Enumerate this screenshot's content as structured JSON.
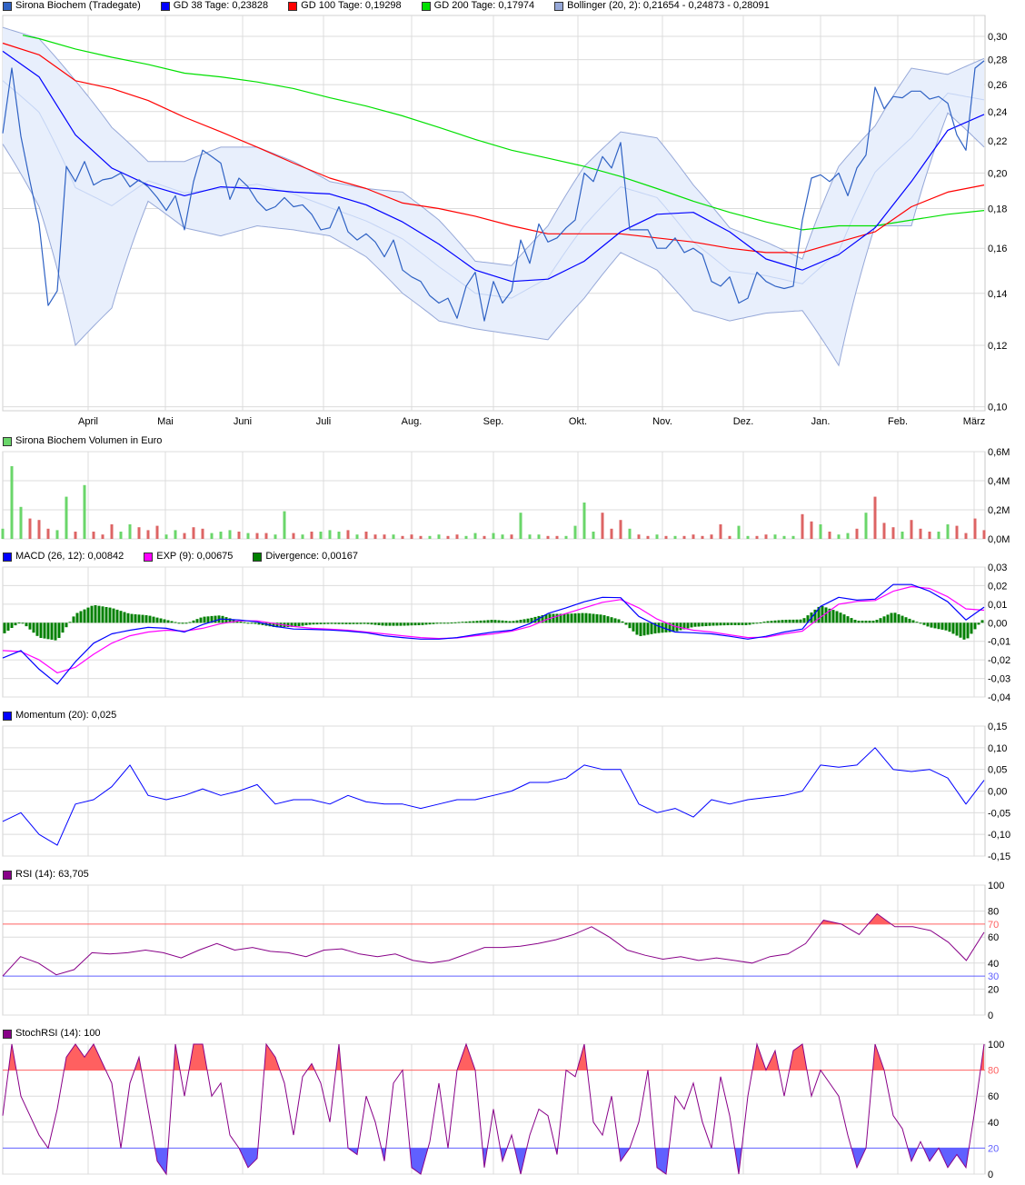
{
  "colors": {
    "price": "#2f62c4",
    "gd38": "#0000ff",
    "gd100": "#ff0000",
    "gd200": "#00e000",
    "boll_line": "#96a8d8",
    "boll_fill": "#e8effc",
    "vol_up": "#6ad66a",
    "vol_down": "#dd6464",
    "macd": "#0000ff",
    "exp": "#ff00ff",
    "divergence": "#008000",
    "momentum": "#0000ff",
    "rsi": "#880088",
    "upper_level": "#ff6060",
    "lower_level": "#6060ff",
    "grid": "#dcdcdc"
  },
  "legends": {
    "main": [
      {
        "label": "Sirona Biochem (Tradegate)",
        "color": "#2f62c4"
      },
      {
        "label": "GD 38 Tage: 0,23828",
        "color": "#0000ff"
      },
      {
        "label": "GD 100 Tage: 0,19298",
        "color": "#ff0000"
      },
      {
        "label": "GD 200 Tage: 0,17974",
        "color": "#00e000"
      },
      {
        "label": "Bollinger (20, 2): 0,21654 - 0,24873 - 0,28091",
        "color": "#96a8d8"
      }
    ],
    "volume": [
      {
        "label": "Sirona Biochem Volumen in Euro",
        "color": "#6ad66a"
      }
    ],
    "macd": [
      {
        "label": "MACD (26, 12): 0,00842",
        "color": "#0000ff"
      },
      {
        "label": "EXP (9): 0,00675",
        "color": "#ff00ff"
      },
      {
        "label": "Divergence: 0,00167",
        "color": "#008000"
      }
    ],
    "momentum": [
      {
        "label": "Momentum (20): 0,025",
        "color": "#0000ff"
      }
    ],
    "rsi": [
      {
        "label": "RSI (14): 63,705",
        "color": "#880088"
      }
    ],
    "stochrsi": [
      {
        "label": "StochRSI (14): 100",
        "color": "#880088"
      }
    ]
  },
  "chart_data": [
    {
      "type": "line",
      "panel": "price",
      "yscale": "log",
      "ylim": [
        0.1,
        0.3
      ],
      "yticks": [
        "0,30",
        "0,28",
        "0,26",
        "0,24",
        "0,22",
        "0,20",
        "0,18",
        "0,16",
        "0,14",
        "0,12",
        "0,10"
      ],
      "ytick_values": [
        0.3,
        0.28,
        0.26,
        0.24,
        0.22,
        0.2,
        0.18,
        0.16,
        0.14,
        0.12,
        0.1
      ],
      "xticks": [
        "April",
        "Mai",
        "Juni",
        "Juli",
        "Aug.",
        "Sep.",
        "Okt.",
        "Nov.",
        "Dez.",
        "Jan.",
        "Feb.",
        "März"
      ],
      "grid": true,
      "legend": "top-left",
      "series": [
        {
          "name": "Sirona Biochem (Tradegate)",
          "values": [
            0.225,
            0.273,
            0.223,
            0.195,
            0.172,
            0.135,
            0.141,
            0.204,
            0.195,
            0.207,
            0.193,
            0.196,
            0.197,
            0.2,
            0.192,
            0.196,
            0.192,
            0.186,
            0.179,
            0.187,
            0.169,
            0.195,
            0.214,
            0.21,
            0.206,
            0.185,
            0.197,
            0.192,
            0.184,
            0.179,
            0.181,
            0.186,
            0.181,
            0.182,
            0.177,
            0.169,
            0.17,
            0.181,
            0.168,
            0.164,
            0.167,
            0.163,
            0.156,
            0.164,
            0.15,
            0.147,
            0.145,
            0.139,
            0.136,
            0.138,
            0.13,
            0.143,
            0.149,
            0.129,
            0.145,
            0.136,
            0.141,
            0.164,
            0.153,
            0.172,
            0.163,
            0.165,
            0.17,
            0.174,
            0.2,
            0.195,
            0.21,
            0.203,
            0.219,
            0.169,
            0.169,
            0.169,
            0.16,
            0.16,
            0.165,
            0.158,
            0.16,
            0.157,
            0.145,
            0.143,
            0.147,
            0.136,
            0.138,
            0.149,
            0.145,
            0.143,
            0.142,
            0.143,
            0.174,
            0.197,
            0.199,
            0.195,
            0.2,
            0.187,
            0.203,
            0.211,
            0.258,
            0.242,
            0.251,
            0.25,
            0.255,
            0.255,
            0.249,
            0.251,
            0.246,
            0.224,
            0.214,
            0.273,
            0.279
          ]
        },
        {
          "name": "GD 38 Tage",
          "values": [
            0.287,
            0.266,
            0.224,
            0.203,
            0.193,
            0.187,
            0.192,
            0.191,
            0.189,
            0.188,
            0.182,
            0.173,
            0.162,
            0.15,
            0.145,
            0.146,
            0.154,
            0.168,
            0.177,
            0.178,
            0.168,
            0.155,
            0.15,
            0.157,
            0.17,
            0.195,
            0.227,
            0.238
          ]
        },
        {
          "name": "GD 100 Tage",
          "values": [
            0.294,
            0.284,
            0.263,
            0.257,
            0.248,
            0.236,
            0.226,
            0.216,
            0.206,
            0.197,
            0.191,
            0.183,
            0.18,
            0.176,
            0.171,
            0.167,
            0.167,
            0.167,
            0.165,
            0.163,
            0.16,
            0.158,
            0.158,
            0.163,
            0.168,
            0.181,
            0.189,
            0.193
          ]
        },
        {
          "name": "GD 200 Tage",
          "values": [
            null,
            0.298,
            0.289,
            0.282,
            0.276,
            0.269,
            0.266,
            0.262,
            0.257,
            0.25,
            0.244,
            0.237,
            0.229,
            0.221,
            0.214,
            0.209,
            0.204,
            0.198,
            0.191,
            0.184,
            0.178,
            0.173,
            0.169,
            0.171,
            0.171,
            0.174,
            0.177,
            0.179
          ]
        },
        {
          "name": "Bollinger upper",
          "values": [
            0.308,
            0.298,
            0.263,
            0.229,
            0.207,
            0.207,
            0.216,
            0.216,
            0.207,
            0.195,
            0.191,
            0.189,
            0.174,
            0.154,
            0.152,
            0.171,
            0.204,
            0.226,
            0.222,
            0.193,
            0.17,
            0.163,
            0.155,
            0.204,
            0.23,
            0.273,
            0.268,
            0.281
          ]
        },
        {
          "name": "Bollinger lower",
          "values": [
            0.218,
            0.181,
            0.12,
            0.134,
            0.184,
            0.17,
            0.166,
            0.171,
            0.169,
            0.166,
            0.156,
            0.14,
            0.129,
            0.126,
            0.124,
            0.122,
            0.138,
            0.158,
            0.15,
            0.133,
            0.129,
            0.132,
            0.133,
            0.113,
            0.171,
            0.171,
            0.239,
            0.216
          ]
        }
      ]
    },
    {
      "type": "bar",
      "panel": "volume",
      "ylim": [
        0,
        0.6
      ],
      "yticks": [
        "0,6M",
        "0,4M",
        "0,2M",
        "0,0M"
      ],
      "ytick_values": [
        0.6,
        0.4,
        0.2,
        0
      ],
      "values": [
        0.07,
        0.5,
        0.22,
        0.14,
        0.13,
        0.07,
        0.06,
        0.29,
        0.05,
        0.37,
        0.05,
        0.03,
        0.1,
        0.05,
        0.1,
        0.08,
        0.06,
        0.09,
        0.03,
        0.06,
        0.04,
        0.08,
        0.07,
        0.04,
        0.05,
        0.06,
        0.05,
        0.04,
        0.04,
        0.04,
        0.03,
        0.19,
        0.04,
        0.03,
        0.05,
        0.05,
        0.06,
        0.05,
        0.06,
        0.03,
        0.05,
        0.03,
        0.03,
        0.03,
        0.02,
        0.03,
        0.02,
        0.02,
        0.03,
        0.02,
        0.03,
        0.02,
        0.04,
        0.02,
        0.04,
        0.03,
        0.03,
        0.18,
        0.03,
        0.03,
        0.02,
        0.02,
        0.02,
        0.09,
        0.25,
        0.05,
        0.18,
        0.07,
        0.13,
        0.07,
        0.03,
        0.02,
        0.03,
        0.02,
        0.02,
        0.02,
        0.03,
        0.02,
        0.03,
        0.1,
        0.02,
        0.09,
        0.02,
        0.02,
        0.03,
        0.03,
        0.02,
        0.02,
        0.17,
        0.12,
        0.1,
        0.05,
        0.03,
        0.04,
        0.07,
        0.18,
        0.29,
        0.11,
        0.08,
        0.05,
        0.13,
        0.07,
        0.05,
        0.05,
        0.1,
        0.09,
        0.04,
        0.14,
        0.06
      ],
      "direction": "gggrrrggrgrrrggrrrggrrrgggrgrrggrgrgggrgrrrgrrrggrrggrggrgggrrggggrrrgrrgrgrrrrrrggrrgggrrgrggrgrrrgrrrgg"
    },
    {
      "type": "line",
      "panel": "macd",
      "ylim": [
        -0.04,
        0.03
      ],
      "yticks": [
        "0,03",
        "0,02",
        "0,01",
        "0,00",
        "-0,01",
        "-0,02",
        "-0,03",
        "-0,04"
      ],
      "ytick_values": [
        0.03,
        0.02,
        0.01,
        0,
        -0.01,
        -0.02,
        -0.03,
        -0.04
      ],
      "series": [
        {
          "name": "MACD (26, 12)",
          "values": [
            -0.019,
            -0.015,
            -0.025,
            -0.033,
            -0.021,
            -0.011,
            -0.006,
            -0.004,
            -0.0025,
            -0.003,
            -0.005,
            -0.001,
            0.002,
            0.0015,
            0.0005,
            -0.002,
            -0.0034,
            -0.0036,
            -0.0039,
            -0.0045,
            -0.0054,
            -0.007,
            -0.008,
            -0.0088,
            -0.0088,
            -0.008,
            -0.0064,
            -0.005,
            -0.004,
            -0.0005,
            0.005,
            0.008,
            0.0113,
            0.0137,
            0.0135,
            0.0034,
            -0.0015,
            -0.005,
            -0.0054,
            -0.006,
            -0.0073,
            -0.0088,
            -0.0073,
            -0.005,
            -0.0034,
            0.0088,
            0.0137,
            0.0122,
            0.0127,
            0.0206,
            0.0206,
            0.017,
            0.0113,
            0.0015,
            0.0084
          ]
        },
        {
          "name": "EXP (9)",
          "values": [
            -0.015,
            -0.0155,
            -0.02,
            -0.027,
            -0.024,
            -0.017,
            -0.011,
            -0.007,
            -0.005,
            -0.004,
            -0.0045,
            -0.003,
            -0.0005,
            0.001,
            0.001,
            -0.0005,
            -0.002,
            -0.003,
            -0.0035,
            -0.004,
            -0.005,
            -0.006,
            -0.007,
            -0.008,
            -0.0085,
            -0.0082,
            -0.007,
            -0.006,
            -0.0045,
            -0.002,
            0.002,
            0.005,
            0.008,
            0.011,
            0.0125,
            0.008,
            0.002,
            -0.002,
            -0.004,
            -0.005,
            -0.0065,
            -0.008,
            -0.0078,
            -0.006,
            -0.0045,
            0.003,
            0.01,
            0.0115,
            0.012,
            0.017,
            0.0195,
            0.0185,
            0.014,
            0.0075,
            0.00675
          ]
        },
        {
          "name": "Divergence"
        }
      ]
    },
    {
      "type": "line",
      "panel": "momentum",
      "ylim": [
        -0.15,
        0.15
      ],
      "yticks": [
        "0,15",
        "0,10",
        "0,05",
        "0,00",
        "-0,05",
        "-0,10",
        "-0,15"
      ],
      "ytick_values": [
        0.15,
        0.1,
        0.05,
        0,
        -0.05,
        -0.1,
        -0.15
      ],
      "series": [
        {
          "name": "Momentum (20)",
          "values": [
            -0.07,
            -0.05,
            -0.1,
            -0.125,
            -0.03,
            -0.02,
            0.01,
            0.06,
            -0.01,
            -0.02,
            -0.01,
            0.005,
            -0.01,
            0.0,
            0.015,
            -0.03,
            -0.02,
            -0.02,
            -0.03,
            -0.01,
            -0.025,
            -0.03,
            -0.03,
            -0.04,
            -0.03,
            -0.02,
            -0.02,
            -0.01,
            0.0,
            0.02,
            0.02,
            0.03,
            0.06,
            0.05,
            0.05,
            -0.03,
            -0.05,
            -0.04,
            -0.06,
            -0.02,
            -0.03,
            -0.02,
            -0.015,
            -0.01,
            0.0,
            0.06,
            0.055,
            0.06,
            0.1,
            0.05,
            0.045,
            0.05,
            0.03,
            -0.03,
            0.025
          ]
        }
      ]
    },
    {
      "type": "line",
      "panel": "rsi",
      "ylim": [
        0,
        100
      ],
      "levels": [
        70,
        30
      ],
      "yticks": [
        "100",
        "80",
        "60",
        "40",
        "20",
        "0"
      ],
      "ytick_values": [
        100,
        80,
        60,
        40,
        20,
        0
      ],
      "level_labels": [
        "70",
        "30"
      ],
      "series": [
        {
          "name": "RSI (14)",
          "values": [
            30,
            45,
            40,
            31,
            35,
            48,
            47,
            48,
            50,
            48,
            44,
            50,
            55,
            50,
            52,
            49,
            48,
            45,
            50,
            51,
            47,
            45,
            47,
            42,
            40,
            42,
            47,
            52,
            52,
            53,
            55,
            58,
            62,
            68,
            60,
            50,
            46,
            43,
            45,
            42,
            44,
            42,
            40,
            45,
            47,
            55,
            73,
            70,
            62,
            78,
            68,
            68,
            65,
            56,
            42,
            63.7
          ]
        }
      ]
    },
    {
      "type": "line",
      "panel": "stochrsi",
      "ylim": [
        0,
        100
      ],
      "levels": [
        80,
        20
      ],
      "yticks": [
        "100",
        "60",
        "40",
        "0"
      ],
      "ytick_values": [
        100,
        60,
        40,
        0
      ],
      "level_labels": [
        "80",
        "20"
      ],
      "series": [
        {
          "name": "StochRSI (14)",
          "values": [
            45,
            100,
            60,
            45,
            30,
            20,
            50,
            90,
            100,
            90,
            100,
            85,
            70,
            20,
            70,
            90,
            50,
            10,
            0,
            100,
            60,
            100,
            100,
            60,
            70,
            30,
            20,
            5,
            12,
            100,
            90,
            70,
            30,
            75,
            85,
            70,
            40,
            100,
            20,
            15,
            60,
            40,
            10,
            70,
            80,
            5,
            0,
            25,
            70,
            20,
            80,
            100,
            80,
            5,
            50,
            10,
            30,
            0,
            30,
            50,
            45,
            15,
            80,
            75,
            100,
            40,
            30,
            60,
            10,
            20,
            40,
            80,
            5,
            0,
            60,
            50,
            70,
            40,
            20,
            75,
            45,
            0,
            60,
            100,
            80,
            95,
            60,
            95,
            100,
            60,
            80,
            70,
            60,
            30,
            5,
            20,
            100,
            80,
            45,
            35,
            10,
            25,
            10,
            20,
            5,
            15,
            5,
            50,
            100
          ]
        }
      ]
    }
  ]
}
